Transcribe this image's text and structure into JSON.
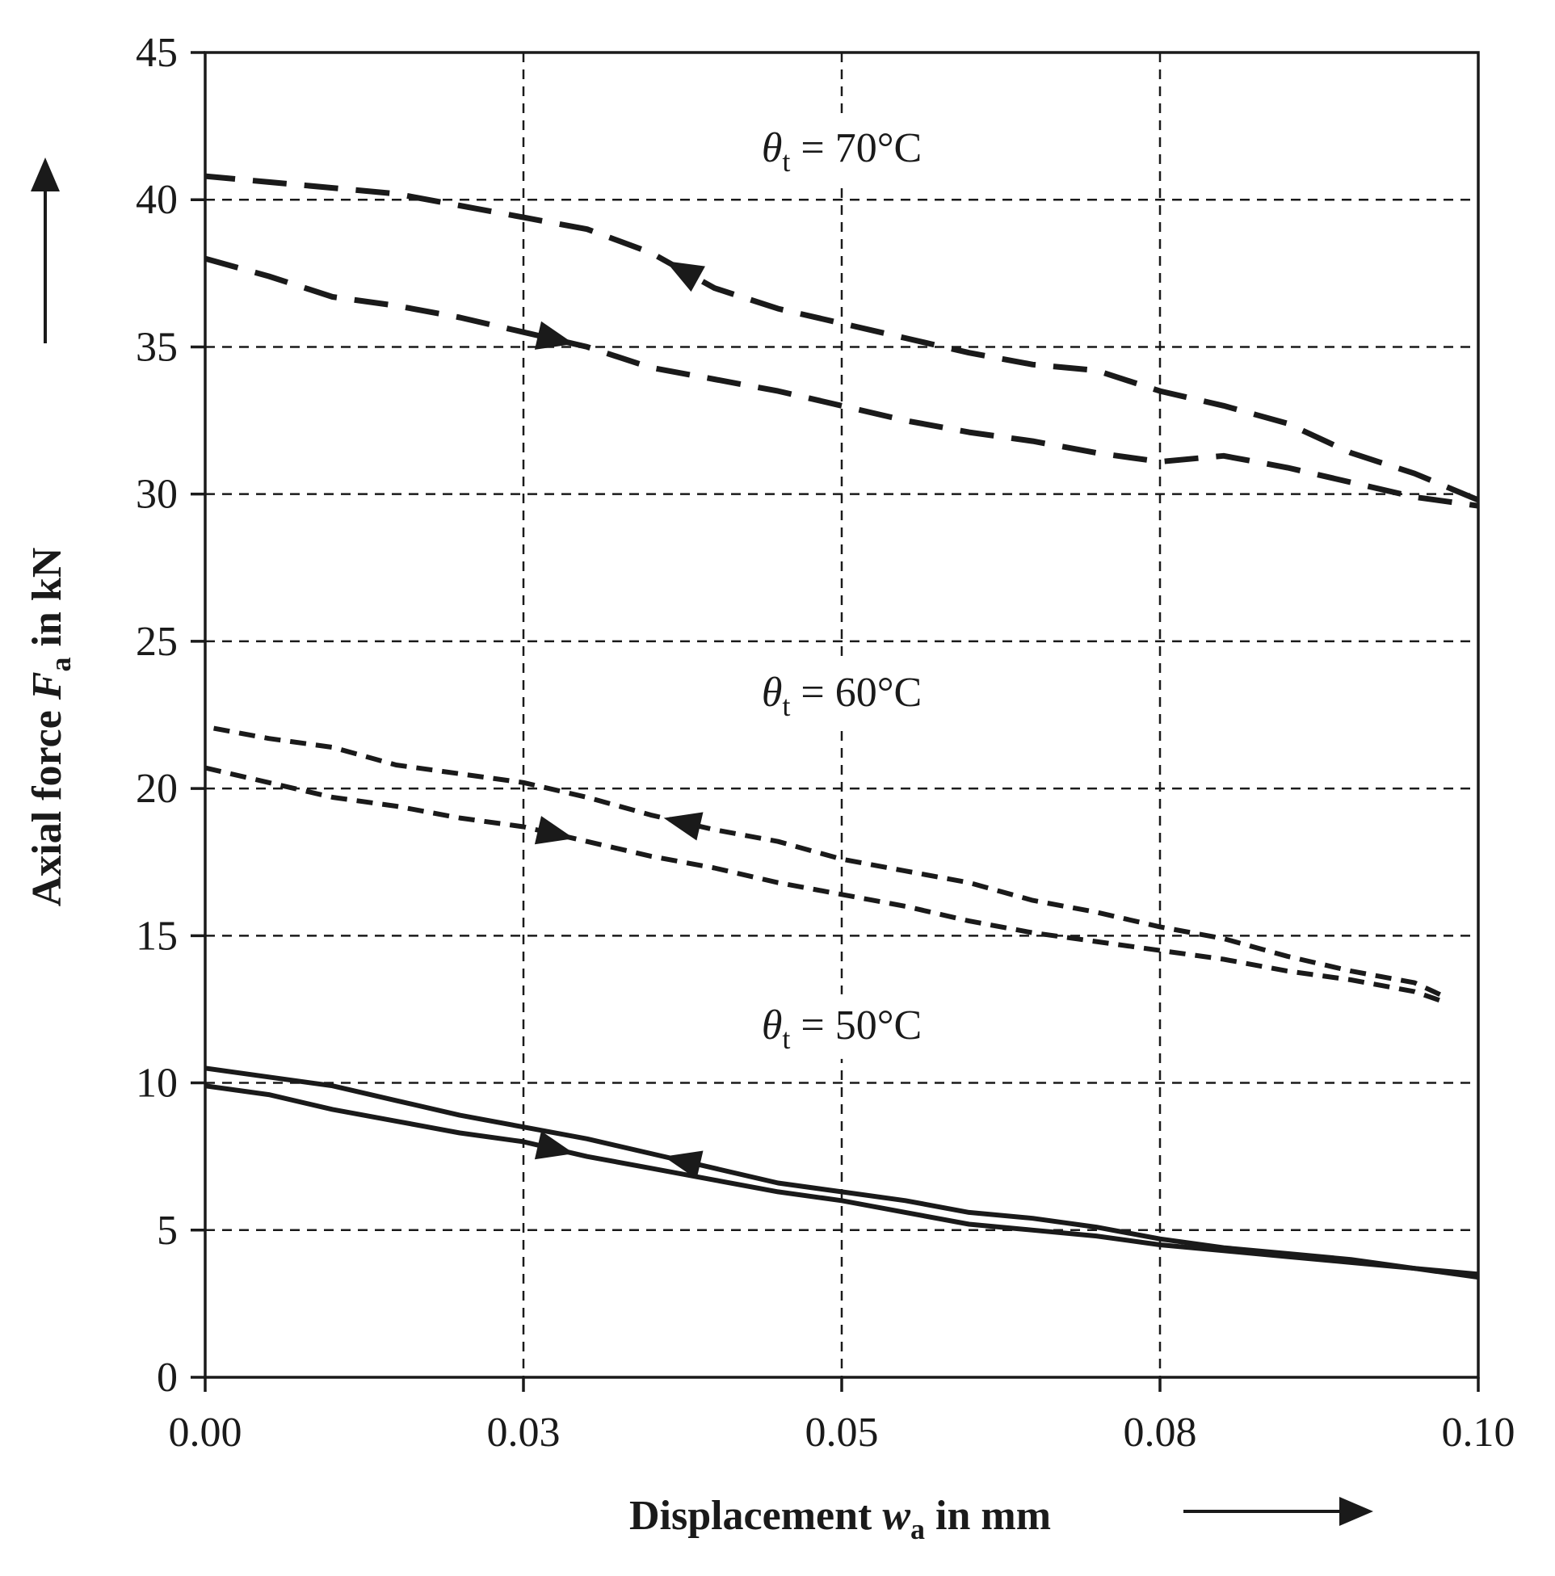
{
  "chart_data": {
    "type": "line",
    "title": "",
    "xlabel": "Displacement wa in mm",
    "xlabel_parts": {
      "prefix": "Displacement ",
      "symbol": "w",
      "subscript": "a",
      "suffix": " in mm"
    },
    "ylabel": "Axial force Fa in kN",
    "ylabel_parts": {
      "prefix": "Axial force ",
      "symbol": "F",
      "subscript": "a",
      "suffix": " in kN"
    },
    "xlim": [
      0,
      0.1
    ],
    "ylim": [
      0,
      45
    ],
    "xticks": [
      0,
      0.025,
      0.05,
      0.075,
      0.1
    ],
    "xtick_labels": [
      "0.00",
      "0.03",
      "0.05",
      "0.08",
      "0.10"
    ],
    "yticks": [
      0,
      5,
      10,
      15,
      20,
      25,
      30,
      35,
      40,
      45
    ],
    "ytick_labels": [
      "0",
      "5",
      "10",
      "15",
      "20",
      "25",
      "30",
      "35",
      "40",
      "45"
    ],
    "grid": true,
    "annotations": [
      {
        "symbol": "θ",
        "subscript": "t",
        "text": " = 70°C",
        "x": 0.05,
        "y": 41.3
      },
      {
        "symbol": "θ",
        "subscript": "t",
        "text": " = 60°C",
        "x": 0.05,
        "y": 22.8
      },
      {
        "symbol": "θ",
        "subscript": "t",
        "text": " = 50°C",
        "x": 0.05,
        "y": 11.5
      }
    ],
    "series": [
      {
        "name": "θt = 70°C loading",
        "style": "long-dash",
        "direction": "forward",
        "x": [
          0,
          0.005,
          0.01,
          0.015,
          0.02,
          0.025,
          0.03,
          0.035,
          0.04,
          0.045,
          0.05,
          0.055,
          0.06,
          0.065,
          0.07,
          0.075,
          0.08,
          0.085,
          0.09,
          0.095,
          0.1
        ],
        "y": [
          38.0,
          37.4,
          36.7,
          36.4,
          36.0,
          35.5,
          35.0,
          34.3,
          33.9,
          33.5,
          33.0,
          32.5,
          32.1,
          31.8,
          31.4,
          31.1,
          31.3,
          30.9,
          30.4,
          29.9,
          29.6
        ]
      },
      {
        "name": "θt = 70°C unloading",
        "style": "long-dash",
        "direction": "backward",
        "x": [
          0.1,
          0.095,
          0.09,
          0.088,
          0.085,
          0.08,
          0.075,
          0.07,
          0.065,
          0.06,
          0.055,
          0.05,
          0.045,
          0.04,
          0.035,
          0.03,
          0.025,
          0.02,
          0.015,
          0.01,
          0.005,
          0
        ],
        "y": [
          29.8,
          30.7,
          31.4,
          31.8,
          32.4,
          33.0,
          33.5,
          34.2,
          34.4,
          34.8,
          35.3,
          35.8,
          36.3,
          37.0,
          38.2,
          39.0,
          39.4,
          39.8,
          40.2,
          40.4,
          40.6,
          40.8
        ]
      },
      {
        "name": "θt = 60°C loading",
        "style": "short-dash",
        "direction": "forward",
        "x": [
          0,
          0.005,
          0.01,
          0.015,
          0.02,
          0.025,
          0.03,
          0.035,
          0.04,
          0.045,
          0.05,
          0.055,
          0.06,
          0.065,
          0.07,
          0.075,
          0.08,
          0.085,
          0.09,
          0.095,
          0.097
        ],
        "y": [
          20.7,
          20.2,
          19.7,
          19.4,
          19.0,
          18.7,
          18.2,
          17.7,
          17.3,
          16.8,
          16.4,
          16.0,
          15.5,
          15.1,
          14.8,
          14.5,
          14.2,
          13.8,
          13.5,
          13.1,
          12.8
        ]
      },
      {
        "name": "θt = 60°C unloading",
        "style": "short-dash",
        "direction": "backward",
        "x": [
          0.097,
          0.095,
          0.09,
          0.085,
          0.08,
          0.075,
          0.07,
          0.065,
          0.06,
          0.055,
          0.05,
          0.045,
          0.04,
          0.035,
          0.03,
          0.025,
          0.02,
          0.015,
          0.01,
          0.005,
          0
        ],
        "y": [
          13.0,
          13.4,
          13.8,
          14.3,
          14.9,
          15.3,
          15.8,
          16.2,
          16.8,
          17.2,
          17.6,
          18.2,
          18.6,
          19.1,
          19.7,
          20.2,
          20.5,
          20.8,
          21.4,
          21.7,
          22.1
        ]
      },
      {
        "name": "θt = 50°C loading",
        "style": "solid",
        "direction": "forward",
        "x": [
          0,
          0.005,
          0.01,
          0.015,
          0.02,
          0.025,
          0.03,
          0.035,
          0.04,
          0.045,
          0.05,
          0.055,
          0.06,
          0.065,
          0.07,
          0.075,
          0.08,
          0.085,
          0.09,
          0.095,
          0.1
        ],
        "y": [
          9.9,
          9.6,
          9.1,
          8.7,
          8.3,
          8.0,
          7.5,
          7.1,
          6.7,
          6.3,
          6.0,
          5.6,
          5.2,
          5.0,
          4.8,
          4.5,
          4.3,
          4.1,
          3.9,
          3.7,
          3.5
        ]
      },
      {
        "name": "θt = 50°C unloading",
        "style": "solid",
        "direction": "backward",
        "x": [
          0.1,
          0.095,
          0.09,
          0.085,
          0.08,
          0.075,
          0.07,
          0.065,
          0.06,
          0.055,
          0.05,
          0.045,
          0.04,
          0.035,
          0.03,
          0.025,
          0.02,
          0.015,
          0.01,
          0.005,
          0
        ],
        "y": [
          3.4,
          3.7,
          4.0,
          4.2,
          4.4,
          4.7,
          5.1,
          5.4,
          5.6,
          6.0,
          6.3,
          6.6,
          7.1,
          7.6,
          8.1,
          8.5,
          8.9,
          9.4,
          9.9,
          10.2,
          10.5
        ]
      }
    ]
  }
}
